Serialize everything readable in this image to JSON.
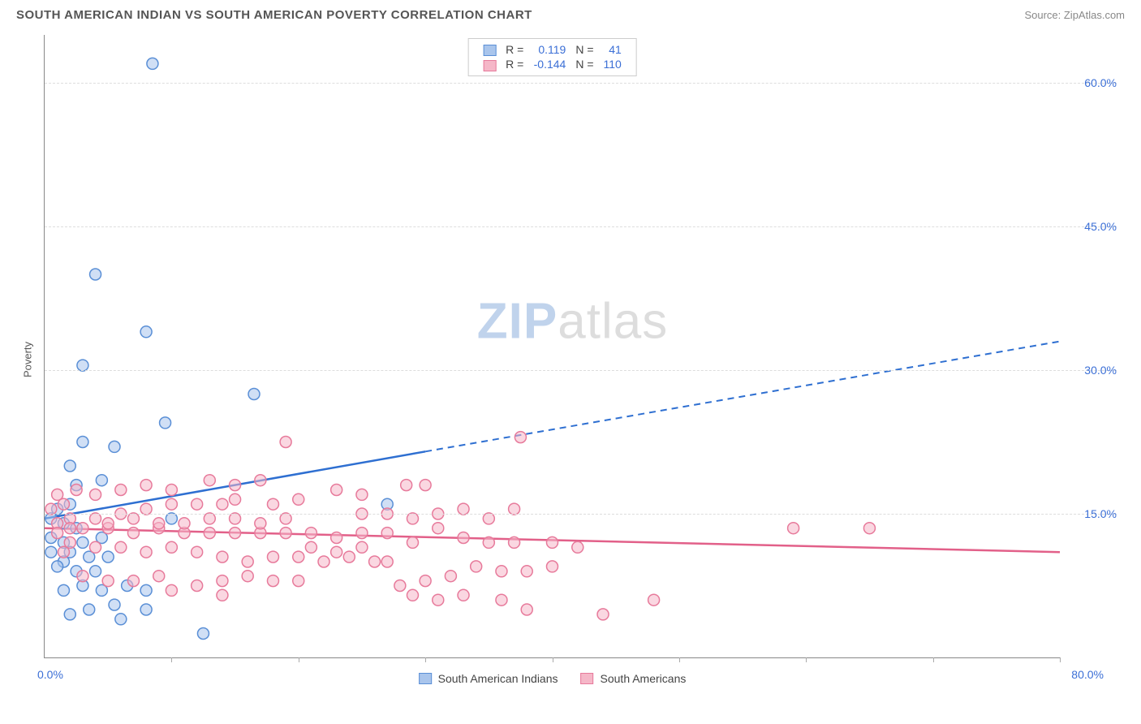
{
  "header": {
    "title": "SOUTH AMERICAN INDIAN VS SOUTH AMERICAN POVERTY CORRELATION CHART",
    "source": "Source: ZipAtlas.com"
  },
  "chart": {
    "type": "scatter",
    "ylabel": "Poverty",
    "xlim": [
      0,
      80
    ],
    "ylim": [
      0,
      65
    ],
    "ytick_positions": [
      15,
      30,
      45,
      60
    ],
    "ytick_labels": [
      "15.0%",
      "30.0%",
      "45.0%",
      "60.0%"
    ],
    "xtick_positions": [
      0,
      10,
      20,
      30,
      40,
      50,
      60,
      70,
      80
    ],
    "x_start_label": "0.0%",
    "x_end_label": "80.0%",
    "background_color": "#ffffff",
    "grid_color": "#dddddd",
    "axis_color": "#888888",
    "marker_radius": 7,
    "marker_stroke_width": 1.5,
    "trend_line_width": 2.5,
    "watermark_zip": "ZIP",
    "watermark_atlas": "atlas",
    "series": [
      {
        "name": "South American Indians",
        "fill_color": "#a9c5ec",
        "stroke_color": "#5a8fd6",
        "line_color": "#2e6fd1",
        "r_label": "R =",
        "r_value": "0.119",
        "n_label": "N =",
        "n_value": "41",
        "trend": {
          "x1": 0,
          "y1": 14.5,
          "x2_solid": 30,
          "y2_solid": 21.5,
          "x2_dash": 80,
          "y2_dash": 33.0
        },
        "points": [
          [
            8.5,
            62.0
          ],
          [
            4.0,
            40.0
          ],
          [
            8.0,
            34.0
          ],
          [
            3.0,
            30.5
          ],
          [
            16.5,
            27.5
          ],
          [
            9.5,
            24.5
          ],
          [
            3.0,
            22.5
          ],
          [
            5.5,
            22.0
          ],
          [
            2.0,
            20.0
          ],
          [
            2.5,
            18.0
          ],
          [
            4.5,
            18.5
          ],
          [
            2.0,
            16.0
          ],
          [
            1.0,
            15.5
          ],
          [
            0.5,
            14.5
          ],
          [
            1.5,
            14.0
          ],
          [
            2.5,
            13.5
          ],
          [
            0.5,
            12.5
          ],
          [
            1.5,
            12.0
          ],
          [
            3.0,
            12.0
          ],
          [
            4.5,
            12.5
          ],
          [
            0.5,
            11.0
          ],
          [
            2.0,
            11.0
          ],
          [
            1.5,
            10.0
          ],
          [
            3.5,
            10.5
          ],
          [
            5.0,
            10.5
          ],
          [
            1.0,
            9.5
          ],
          [
            2.5,
            9.0
          ],
          [
            4.0,
            9.0
          ],
          [
            6.5,
            7.5
          ],
          [
            8.0,
            7.0
          ],
          [
            4.5,
            7.0
          ],
          [
            3.0,
            7.5
          ],
          [
            1.5,
            7.0
          ],
          [
            5.5,
            5.5
          ],
          [
            8.0,
            5.0
          ],
          [
            3.5,
            5.0
          ],
          [
            6.0,
            4.0
          ],
          [
            2.0,
            4.5
          ],
          [
            12.5,
            2.5
          ],
          [
            27.0,
            16.0
          ],
          [
            10.0,
            14.5
          ]
        ]
      },
      {
        "name": "South Americans",
        "fill_color": "#f5b7c8",
        "stroke_color": "#e77a9b",
        "line_color": "#e26089",
        "r_label": "R =",
        "r_value": "-0.144",
        "n_label": "N =",
        "n_value": "110",
        "trend": {
          "x1": 0,
          "y1": 13.5,
          "x2_solid": 80,
          "y2_solid": 11.0,
          "x2_dash": 80,
          "y2_dash": 11.0
        },
        "points": [
          [
            37.5,
            23.0
          ],
          [
            19.0,
            22.5
          ],
          [
            28.5,
            18.0
          ],
          [
            30.0,
            18.0
          ],
          [
            23.0,
            17.5
          ],
          [
            25.0,
            17.0
          ],
          [
            20.0,
            16.5
          ],
          [
            18.0,
            16.0
          ],
          [
            15.0,
            16.5
          ],
          [
            14.0,
            16.0
          ],
          [
            12.0,
            16.0
          ],
          [
            10.0,
            16.0
          ],
          [
            8.0,
            15.5
          ],
          [
            6.0,
            15.0
          ],
          [
            4.0,
            14.5
          ],
          [
            2.0,
            14.5
          ],
          [
            1.0,
            14.0
          ],
          [
            1.0,
            13.0
          ],
          [
            2.0,
            13.5
          ],
          [
            3.0,
            13.5
          ],
          [
            5.0,
            13.5
          ],
          [
            7.0,
            13.0
          ],
          [
            9.0,
            13.5
          ],
          [
            11.0,
            13.0
          ],
          [
            13.0,
            13.0
          ],
          [
            15.0,
            13.0
          ],
          [
            17.0,
            13.0
          ],
          [
            19.0,
            13.0
          ],
          [
            21.0,
            13.0
          ],
          [
            23.0,
            12.5
          ],
          [
            25.0,
            13.0
          ],
          [
            27.0,
            13.0
          ],
          [
            29.0,
            12.0
          ],
          [
            31.0,
            13.5
          ],
          [
            33.0,
            12.5
          ],
          [
            35.0,
            12.0
          ],
          [
            37.0,
            12.0
          ],
          [
            59.0,
            13.5
          ],
          [
            65.0,
            13.5
          ],
          [
            40.0,
            9.5
          ],
          [
            38.0,
            9.0
          ],
          [
            36.0,
            9.0
          ],
          [
            34.0,
            9.5
          ],
          [
            32.0,
            8.5
          ],
          [
            30.0,
            8.0
          ],
          [
            28.0,
            7.5
          ],
          [
            26.0,
            10.0
          ],
          [
            24.0,
            10.5
          ],
          [
            22.0,
            10.0
          ],
          [
            20.0,
            10.5
          ],
          [
            18.0,
            10.5
          ],
          [
            16.0,
            10.0
          ],
          [
            14.0,
            10.5
          ],
          [
            12.0,
            11.0
          ],
          [
            10.0,
            11.5
          ],
          [
            8.0,
            11.0
          ],
          [
            6.0,
            11.5
          ],
          [
            4.0,
            11.5
          ],
          [
            2.0,
            12.0
          ],
          [
            1.5,
            11.0
          ],
          [
            33.0,
            6.5
          ],
          [
            31.0,
            6.0
          ],
          [
            29.0,
            6.5
          ],
          [
            36.0,
            6.0
          ],
          [
            38.0,
            5.0
          ],
          [
            48.0,
            6.0
          ],
          [
            44.0,
            4.5
          ],
          [
            14.0,
            8.0
          ],
          [
            16.0,
            8.5
          ],
          [
            18.0,
            8.0
          ],
          [
            20.0,
            8.0
          ],
          [
            9.0,
            8.5
          ],
          [
            7.0,
            8.0
          ],
          [
            5.0,
            8.0
          ],
          [
            3.0,
            8.5
          ],
          [
            1.0,
            17.0
          ],
          [
            1.5,
            16.0
          ],
          [
            0.5,
            15.5
          ],
          [
            2.5,
            17.5
          ],
          [
            4.0,
            17.0
          ],
          [
            6.0,
            17.5
          ],
          [
            8.0,
            18.0
          ],
          [
            10.0,
            17.5
          ],
          [
            25.0,
            15.0
          ],
          [
            27.0,
            15.0
          ],
          [
            29.0,
            14.5
          ],
          [
            31.0,
            15.0
          ],
          [
            19.0,
            14.5
          ],
          [
            17.0,
            14.0
          ],
          [
            15.0,
            14.5
          ],
          [
            13.0,
            14.5
          ],
          [
            11.0,
            14.0
          ],
          [
            9.0,
            14.0
          ],
          [
            7.0,
            14.5
          ],
          [
            5.0,
            14.0
          ],
          [
            21.0,
            11.5
          ],
          [
            23.0,
            11.0
          ],
          [
            25.0,
            11.5
          ],
          [
            27.0,
            10.0
          ],
          [
            10.0,
            7.0
          ],
          [
            12.0,
            7.5
          ],
          [
            14.0,
            6.5
          ],
          [
            37.0,
            15.5
          ],
          [
            35.0,
            14.5
          ],
          [
            33.0,
            15.5
          ],
          [
            40.0,
            12.0
          ],
          [
            42.0,
            11.5
          ],
          [
            17.0,
            18.5
          ],
          [
            15.0,
            18.0
          ],
          [
            13.0,
            18.5
          ]
        ]
      }
    ]
  }
}
